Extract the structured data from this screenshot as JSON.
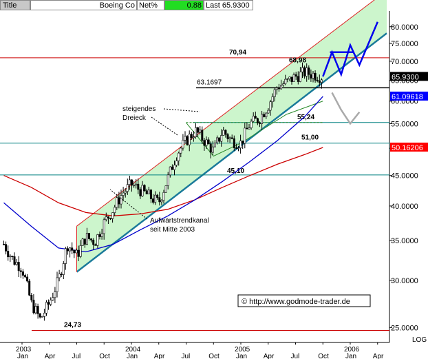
{
  "header": {
    "title_label": "Title",
    "instrument": "Boeing Co",
    "net_label": "Net%",
    "net_value": "0.88",
    "last_label": "Last 65.9300"
  },
  "chart_data": {
    "type": "candlestick",
    "scale": "log",
    "ylim": [
      23.6,
      85
    ],
    "yticks": [
      "25.0000",
      "30.0000",
      "35.0000",
      "40.0000",
      "45.0000",
      "50.0000",
      "55.0000",
      "60.0000",
      "65.0000",
      "70.0000",
      "75.0000",
      "80.0000"
    ],
    "ytick_values": [
      25,
      30,
      35,
      40,
      45,
      50,
      55,
      60,
      65,
      70,
      75,
      80
    ],
    "xtick_labels": [
      {
        "date": "2003-01",
        "top": "2003",
        "bottom": "Jan"
      },
      {
        "date": "2003-04",
        "top": "",
        "bottom": "Apr"
      },
      {
        "date": "2003-07",
        "top": "",
        "bottom": "Jul"
      },
      {
        "date": "2003-10",
        "top": "",
        "bottom": "Oct"
      },
      {
        "date": "2004-01",
        "top": "2004",
        "bottom": "Jan"
      },
      {
        "date": "2004-04",
        "top": "",
        "bottom": "Apr"
      },
      {
        "date": "2004-07",
        "top": "",
        "bottom": "Jul"
      },
      {
        "date": "2004-10",
        "top": "",
        "bottom": "Oct"
      },
      {
        "date": "2005-01",
        "top": "2005",
        "bottom": "Jan"
      },
      {
        "date": "2005-04",
        "top": "",
        "bottom": "Apr"
      },
      {
        "date": "2005-07",
        "top": "",
        "bottom": "Jul"
      },
      {
        "date": "2005-10",
        "top": "",
        "bottom": "Oct"
      },
      {
        "date": "2006-01",
        "top": "2006",
        "bottom": "Jan"
      },
      {
        "date": "2006-04",
        "top": "",
        "bottom": "Apr"
      }
    ],
    "log_label": "LOG",
    "price_path": [
      [
        "2002-11",
        34.5
      ],
      [
        "2002-12",
        32.5
      ],
      [
        "2003-01",
        31.5
      ],
      [
        "2003-02",
        27.5
      ],
      [
        "2003-03",
        25.8
      ],
      [
        "2003-04",
        27.5
      ],
      [
        "2003-05",
        30.0
      ],
      [
        "2003-06",
        34.5
      ],
      [
        "2003-07",
        33.0
      ],
      [
        "2003-08",
        35.5
      ],
      [
        "2003-09",
        34.8
      ],
      [
        "2003-10",
        37.5
      ],
      [
        "2003-11",
        39.5
      ],
      [
        "2003-12",
        42.0
      ],
      [
        "2004-01",
        43.5
      ],
      [
        "2004-02",
        42.5
      ],
      [
        "2004-03",
        41.5
      ],
      [
        "2004-04",
        40.5
      ],
      [
        "2004-05",
        44.5
      ],
      [
        "2004-06",
        49.0
      ],
      [
        "2004-07",
        51.5
      ],
      [
        "2004-08",
        53.5
      ],
      [
        "2004-09",
        51.5
      ],
      [
        "2004-10",
        49.5
      ],
      [
        "2004-11",
        53.5
      ],
      [
        "2004-12",
        51.5
      ],
      [
        "2005-01",
        51.0
      ],
      [
        "2005-02",
        55.0
      ],
      [
        "2005-03",
        56.0
      ],
      [
        "2005-04",
        59.0
      ],
      [
        "2005-05",
        63.5
      ],
      [
        "2005-06",
        64.5
      ],
      [
        "2005-07",
        66.0
      ],
      [
        "2005-08",
        67.0
      ],
      [
        "2005-09",
        66.5
      ],
      [
        "2005-10",
        65.9
      ]
    ],
    "ma_blue": [
      [
        "2002-11",
        40.5
      ],
      [
        "2003-02",
        37.0
      ],
      [
        "2003-05",
        34.0
      ],
      [
        "2003-08",
        33.5
      ],
      [
        "2003-11",
        34.5
      ],
      [
        "2004-02",
        36.5
      ],
      [
        "2004-05",
        38.5
      ],
      [
        "2004-08",
        41.0
      ],
      [
        "2004-11",
        44.0
      ],
      [
        "2005-02",
        47.5
      ],
      [
        "2005-05",
        51.5
      ],
      [
        "2005-08",
        56.5
      ],
      [
        "2005-10",
        61.1
      ]
    ],
    "ma_red": [
      [
        "2002-11",
        45.0
      ],
      [
        "2003-02",
        43.0
      ],
      [
        "2003-05",
        40.5
      ],
      [
        "2003-08",
        39.0
      ],
      [
        "2003-11",
        38.5
      ],
      [
        "2004-02",
        38.8
      ],
      [
        "2004-05",
        39.5
      ],
      [
        "2004-08",
        41.0
      ],
      [
        "2004-11",
        43.0
      ],
      [
        "2005-02",
        45.0
      ],
      [
        "2005-05",
        47.0
      ],
      [
        "2005-08",
        48.8
      ],
      [
        "2005-10",
        50.16
      ]
    ],
    "channel": {
      "lower": [
        [
          "2003-07",
          31.0
        ],
        [
          "2006-05",
          78.0
        ]
      ],
      "upper": [
        [
          "2003-07",
          37.0
        ],
        [
          "2006-05",
          92.0
        ]
      ]
    },
    "horizontal_levels": [
      {
        "value": 70.94,
        "label": "70,94",
        "color": "#cc0000"
      },
      {
        "value": 63.1697,
        "label": "63.1697",
        "color": "#000000"
      },
      {
        "value": 55.24,
        "label": "55,24",
        "color": "#008080"
      },
      {
        "value": 51.0,
        "label": "51,00",
        "color": "#008080"
      },
      {
        "value": 45.1,
        "label": "45,10",
        "color": "#008080"
      },
      {
        "value": 24.73,
        "label": "24,73",
        "color": "#cc0000"
      }
    ],
    "peak_label": "68,98",
    "price_tags": [
      {
        "value": 65.93,
        "label": "65.9300",
        "bg": "#000000",
        "fg": "#ffffff"
      },
      {
        "value": 61.09618,
        "label": "61.09618",
        "bg": "#0000ff",
        "fg": "#ffffff"
      },
      {
        "value": 50.16206,
        "label": "50.16206",
        "bg": "#ff0000",
        "fg": "#ffffff"
      }
    ],
    "annotations": [
      {
        "id": "triangle",
        "lines": [
          "steigendes",
          "Dreieck"
        ]
      },
      {
        "id": "channel",
        "lines": [
          "Aufwärtstrendkanal",
          "seit Mitte 2003"
        ]
      }
    ],
    "scenario_bull": [
      [
        "2005-10",
        66.0
      ],
      [
        "2005-11",
        72.5
      ],
      [
        "2005-12",
        66.5
      ],
      [
        "2006-01",
        74.5
      ],
      [
        "2006-02",
        69.0
      ],
      [
        "2006-04",
        81.5
      ]
    ],
    "scenario_bear": [
      [
        "2005-11",
        62.0
      ],
      [
        "2005-12",
        58.0
      ],
      [
        "2006-01",
        55.0
      ],
      [
        "2006-02",
        57.5
      ]
    ],
    "copyright": "© http://www.godmode-trader.de",
    "colors": {
      "channel_fill": "#ccf5cc",
      "channel_border": "#dd2222",
      "trend": "#1a7a9a",
      "candle_up": "#ffffff",
      "candle_down": "#000000",
      "bull": "#0000ee",
      "bear": "#aaaaaa"
    }
  }
}
